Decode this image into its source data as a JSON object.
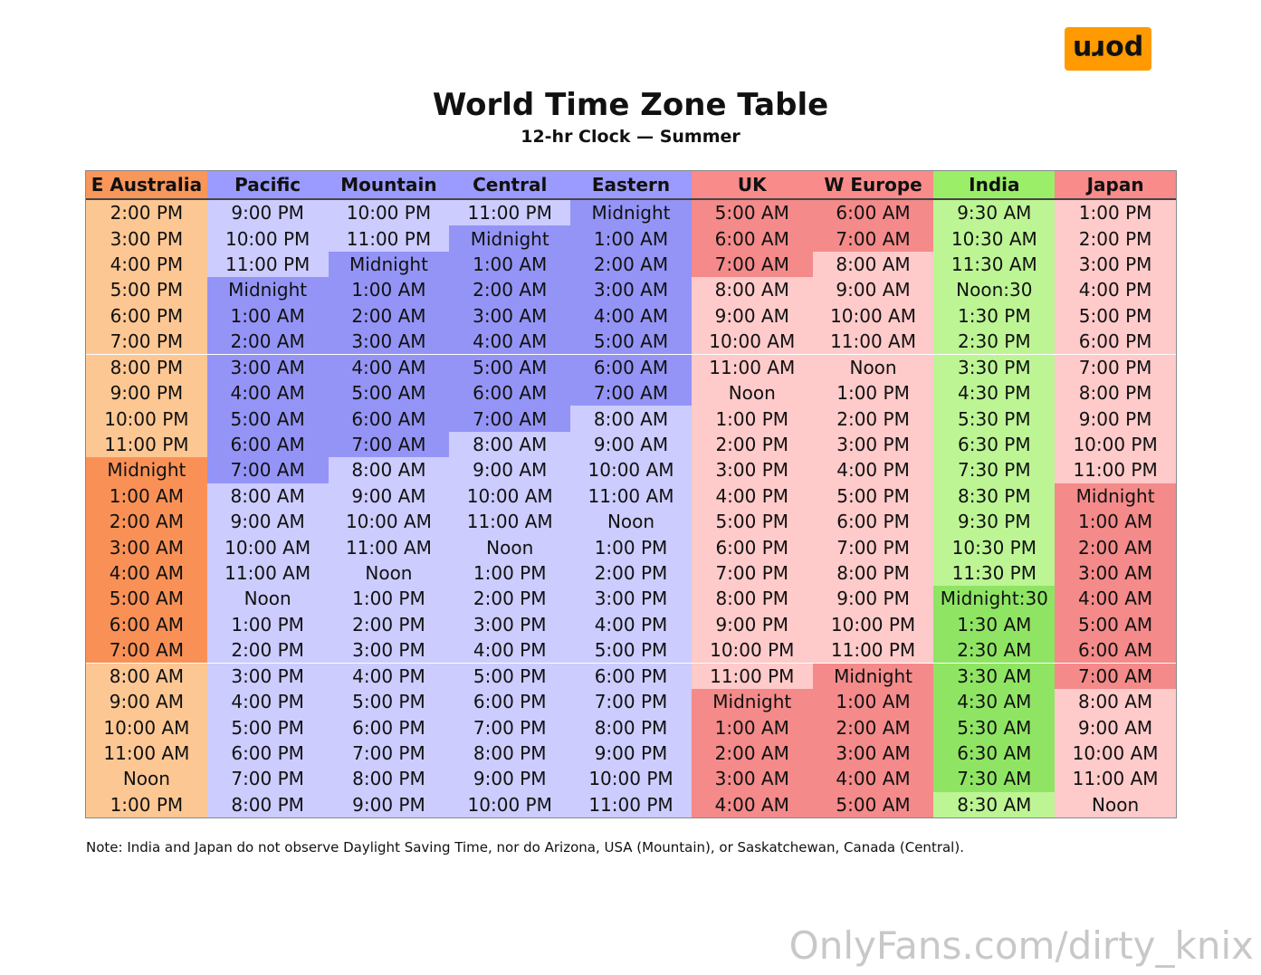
{
  "logo": "porn",
  "header": {
    "title": "World Time Zone Table",
    "subtitle": "12-hr Clock — Summer"
  },
  "table": {
    "columns": [
      {
        "header": "E Australia",
        "header_color": "#f9965a",
        "color": "#fdc794",
        "night_color": "#f99157",
        "night_rows": [
          10,
          11,
          12,
          13,
          14,
          15,
          16,
          17
        ],
        "cells": [
          "2:00 PM",
          "3:00 PM",
          "4:00 PM",
          "5:00 PM",
          "6:00 PM",
          "7:00 PM",
          "8:00 PM",
          "9:00 PM",
          "10:00 PM",
          "11:00 PM",
          "Midnight",
          "1:00 AM",
          "2:00 AM",
          "3:00 AM",
          "4:00 AM",
          "5:00 AM",
          "6:00 AM",
          "7:00 AM",
          "8:00 AM",
          "9:00 AM",
          "10:00 AM",
          "11:00 AM",
          "Noon",
          "1:00 PM"
        ]
      },
      {
        "header": "Pacific",
        "header_color": "#9b9bff",
        "color": "#ccccff",
        "night_color": "#9494f7",
        "night_rows": [
          3,
          4,
          5,
          6,
          7,
          8,
          9,
          10
        ],
        "cells": [
          "9:00 PM",
          "10:00 PM",
          "11:00 PM",
          "Midnight",
          "1:00 AM",
          "2:00 AM",
          "3:00 AM",
          "4:00 AM",
          "5:00 AM",
          "6:00 AM",
          "7:00 AM",
          "8:00 AM",
          "9:00 AM",
          "10:00 AM",
          "11:00 AM",
          "Noon",
          "1:00 PM",
          "2:00 PM",
          "3:00 PM",
          "4:00 PM",
          "5:00 PM",
          "6:00 PM",
          "7:00 PM",
          "8:00 PM"
        ]
      },
      {
        "header": "Mountain",
        "header_color": "#9b9bff",
        "color": "#ccccff",
        "night_color": "#9494f7",
        "night_rows": [
          2,
          3,
          4,
          5,
          6,
          7,
          8,
          9
        ],
        "cells": [
          "10:00 PM",
          "11:00 PM",
          "Midnight",
          "1:00 AM",
          "2:00 AM",
          "3:00 AM",
          "4:00 AM",
          "5:00 AM",
          "6:00 AM",
          "7:00 AM",
          "8:00 AM",
          "9:00 AM",
          "10:00 AM",
          "11:00 AM",
          "Noon",
          "1:00 PM",
          "2:00 PM",
          "3:00 PM",
          "4:00 PM",
          "5:00 PM",
          "6:00 PM",
          "7:00 PM",
          "8:00 PM",
          "9:00 PM"
        ]
      },
      {
        "header": "Central",
        "header_color": "#9b9bff",
        "color": "#ccccff",
        "night_color": "#9494f7",
        "night_rows": [
          1,
          2,
          3,
          4,
          5,
          6,
          7,
          8
        ],
        "cells": [
          "11:00 PM",
          "Midnight",
          "1:00 AM",
          "2:00 AM",
          "3:00 AM",
          "4:00 AM",
          "5:00 AM",
          "6:00 AM",
          "7:00 AM",
          "8:00 AM",
          "9:00 AM",
          "10:00 AM",
          "11:00 AM",
          "Noon",
          "1:00 PM",
          "2:00 PM",
          "3:00 PM",
          "4:00 PM",
          "5:00 PM",
          "6:00 PM",
          "7:00 PM",
          "8:00 PM",
          "9:00 PM",
          "10:00 PM"
        ]
      },
      {
        "header": "Eastern",
        "header_color": "#9b9bff",
        "color": "#ccccff",
        "night_color": "#9494f7",
        "night_rows": [
          0,
          1,
          2,
          3,
          4,
          5,
          6,
          7
        ],
        "cells": [
          "Midnight",
          "1:00 AM",
          "2:00 AM",
          "3:00 AM",
          "4:00 AM",
          "5:00 AM",
          "6:00 AM",
          "7:00 AM",
          "8:00 AM",
          "9:00 AM",
          "10:00 AM",
          "11:00 AM",
          "Noon",
          "1:00 PM",
          "2:00 PM",
          "3:00 PM",
          "4:00 PM",
          "5:00 PM",
          "6:00 PM",
          "7:00 PM",
          "8:00 PM",
          "9:00 PM",
          "10:00 PM",
          "11:00 PM"
        ]
      },
      {
        "header": "UK",
        "header_color": "#f98b8b",
        "color": "#ffcaca",
        "night_color": "#f48a8a",
        "night_rows": [
          0,
          1,
          2,
          19,
          20,
          21,
          22,
          23
        ],
        "cells": [
          "5:00 AM",
          "6:00 AM",
          "7:00 AM",
          "8:00 AM",
          "9:00 AM",
          "10:00 AM",
          "11:00 AM",
          "Noon",
          "1:00 PM",
          "2:00 PM",
          "3:00 PM",
          "4:00 PM",
          "5:00 PM",
          "6:00 PM",
          "7:00 PM",
          "8:00 PM",
          "9:00 PM",
          "10:00 PM",
          "11:00 PM",
          "Midnight",
          "1:00 AM",
          "2:00 AM",
          "3:00 AM",
          "4:00 AM"
        ]
      },
      {
        "header": "W Europe",
        "header_color": "#f98b8b",
        "color": "#ffcaca",
        "night_color": "#f48a8a",
        "night_rows": [
          0,
          1,
          18,
          19,
          20,
          21,
          22,
          23
        ],
        "cells": [
          "6:00 AM",
          "7:00 AM",
          "8:00 AM",
          "9:00 AM",
          "10:00 AM",
          "11:00 AM",
          "Noon",
          "1:00 PM",
          "2:00 PM",
          "3:00 PM",
          "4:00 PM",
          "5:00 PM",
          "6:00 PM",
          "7:00 PM",
          "8:00 PM",
          "9:00 PM",
          "10:00 PM",
          "11:00 PM",
          "Midnight",
          "1:00 AM",
          "2:00 AM",
          "3:00 AM",
          "4:00 AM",
          "5:00 AM"
        ]
      },
      {
        "header": "India",
        "header_color": "#9bee68",
        "color": "#bdf595",
        "night_color": "#8fe563",
        "night_rows": [
          15,
          16,
          17,
          18,
          19,
          20,
          21,
          22
        ],
        "cells": [
          "9:30 AM",
          "10:30 AM",
          "11:30 AM",
          "Noon:30",
          "1:30 PM",
          "2:30 PM",
          "3:30 PM",
          "4:30 PM",
          "5:30 PM",
          "6:30 PM",
          "7:30 PM",
          "8:30 PM",
          "9:30 PM",
          "10:30 PM",
          "11:30 PM",
          "Midnight:30",
          "1:30 AM",
          "2:30 AM",
          "3:30 AM",
          "4:30 AM",
          "5:30 AM",
          "6:30 AM",
          "7:30 AM",
          "8:30 AM"
        ]
      },
      {
        "header": "Japan",
        "header_color": "#f98b8b",
        "color": "#ffcaca",
        "night_color": "#f48a8a",
        "night_rows": [
          11,
          12,
          13,
          14,
          15,
          16,
          17,
          18
        ],
        "cells": [
          "1:00 PM",
          "2:00 PM",
          "3:00 PM",
          "4:00 PM",
          "5:00 PM",
          "6:00 PM",
          "7:00 PM",
          "8:00 PM",
          "9:00 PM",
          "10:00 PM",
          "11:00 PM",
          "Midnight",
          "1:00 AM",
          "2:00 AM",
          "3:00 AM",
          "4:00 AM",
          "5:00 AM",
          "6:00 AM",
          "7:00 AM",
          "8:00 AM",
          "9:00 AM",
          "10:00 AM",
          "11:00 AM",
          "Noon"
        ]
      }
    ]
  },
  "note": "Note: India and Japan do not observe Daylight Saving Time, nor do Arizona, USA (Mountain), or Saskatchewan, Canada (Central).",
  "watermark": "OnlyFans.com/dirty_knix"
}
